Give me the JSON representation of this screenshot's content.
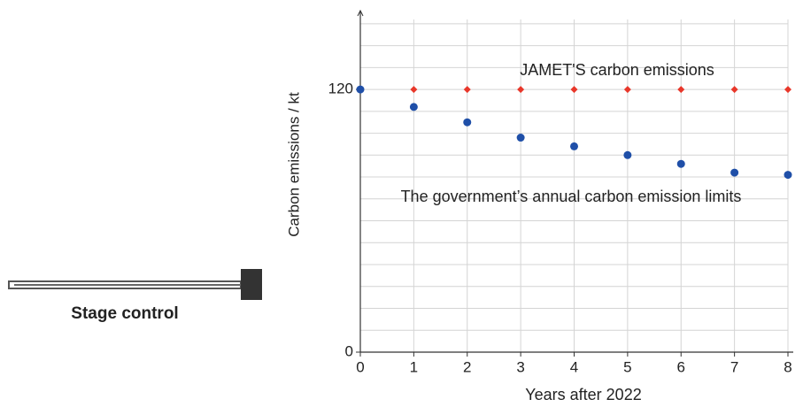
{
  "chart_data": {
    "type": "scatter",
    "x_label": "Years after 2022",
    "y_label": "Carbon emissions / kt",
    "xlim": [
      0,
      8
    ],
    "xticks": [
      0,
      1,
      2,
      3,
      4,
      5,
      6,
      7,
      8
    ],
    "ylim": [
      0,
      156
    ],
    "yticks": [
      0,
      120
    ],
    "y_gridlines": [
      0,
      10,
      20,
      30,
      40,
      50,
      60,
      70,
      80,
      90,
      100,
      110,
      120,
      130,
      140,
      150
    ],
    "grid": true,
    "series": [
      {
        "name": "JAMET'S  carbon emissions",
        "color": "#e8372a",
        "marker": "diamond",
        "x": [
          1,
          2,
          3,
          4,
          5,
          6,
          7,
          8
        ],
        "values": [
          120,
          120,
          120,
          120,
          120,
          120,
          120,
          120
        ]
      },
      {
        "name": "The government’s annual carbon emission limits",
        "color": "#1f4fa8",
        "marker": "circle",
        "x": [
          0,
          1,
          2,
          3,
          4,
          5,
          6,
          7,
          8
        ],
        "values": [
          120,
          112,
          105,
          98,
          94,
          90,
          86,
          82,
          81
        ]
      }
    ]
  },
  "controls": {
    "stage_control": {
      "label": "Stage control"
    }
  }
}
